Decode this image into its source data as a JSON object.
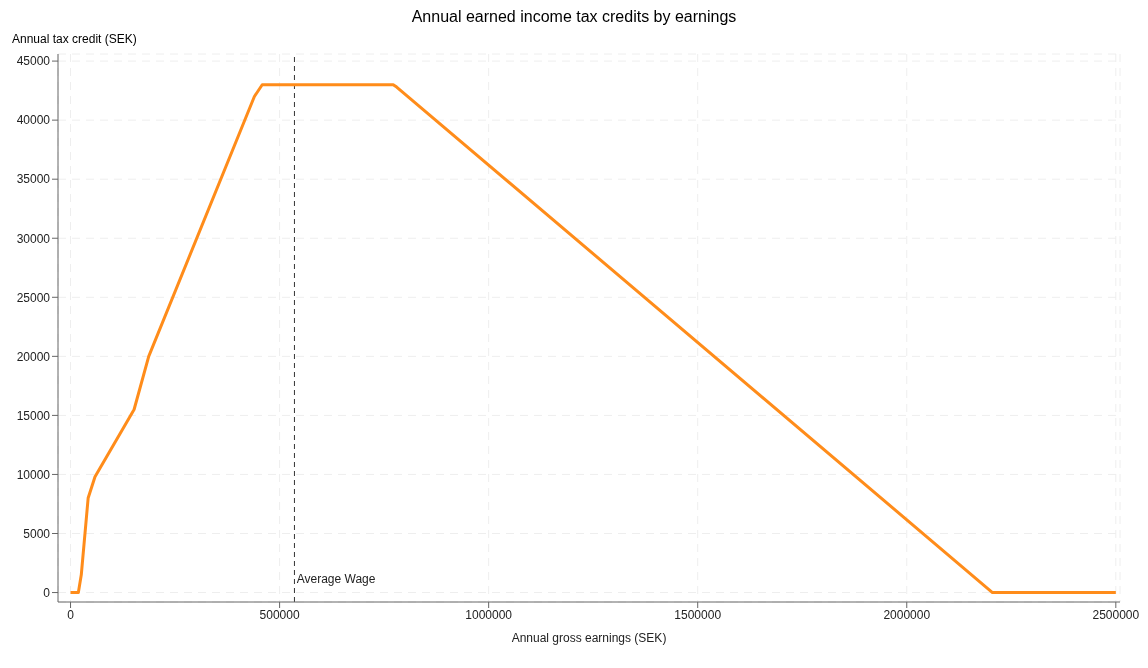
{
  "chart_data": {
    "type": "line",
    "title": "Annual earned income tax credits by earnings",
    "xlabel": "Annual gross earnings (SEK)",
    "ylabel": "Annual tax credit (SEK)",
    "x": [
      0,
      18700,
      25700,
      42100,
      58500,
      152000,
      187000,
      439700,
      458400,
      771700,
      780000,
      2205000,
      2500000
    ],
    "series": [
      {
        "color": "#ff8c1a",
        "values": [
          0,
          0,
          1500,
          8000,
          9800,
          15500,
          20000,
          42000,
          43000,
          43000,
          42800,
          0,
          0
        ]
      }
    ],
    "xlim": [
      -30000,
      2510000
    ],
    "xticks": [
      0,
      500000,
      1000000,
      1500000,
      2000000,
      2500000
    ],
    "ylim": [
      -800,
      45600
    ],
    "yticks": [
      0,
      5000,
      10000,
      15000,
      20000,
      25000,
      30000,
      35000,
      40000,
      45000
    ],
    "ref_lines": [
      {
        "axis": "x",
        "value": 535500,
        "label": "Average Wage",
        "color": "#333333",
        "line_style": "dashed"
      }
    ],
    "grid": true,
    "legend": false,
    "marker": "none",
    "line_style": "solid"
  }
}
